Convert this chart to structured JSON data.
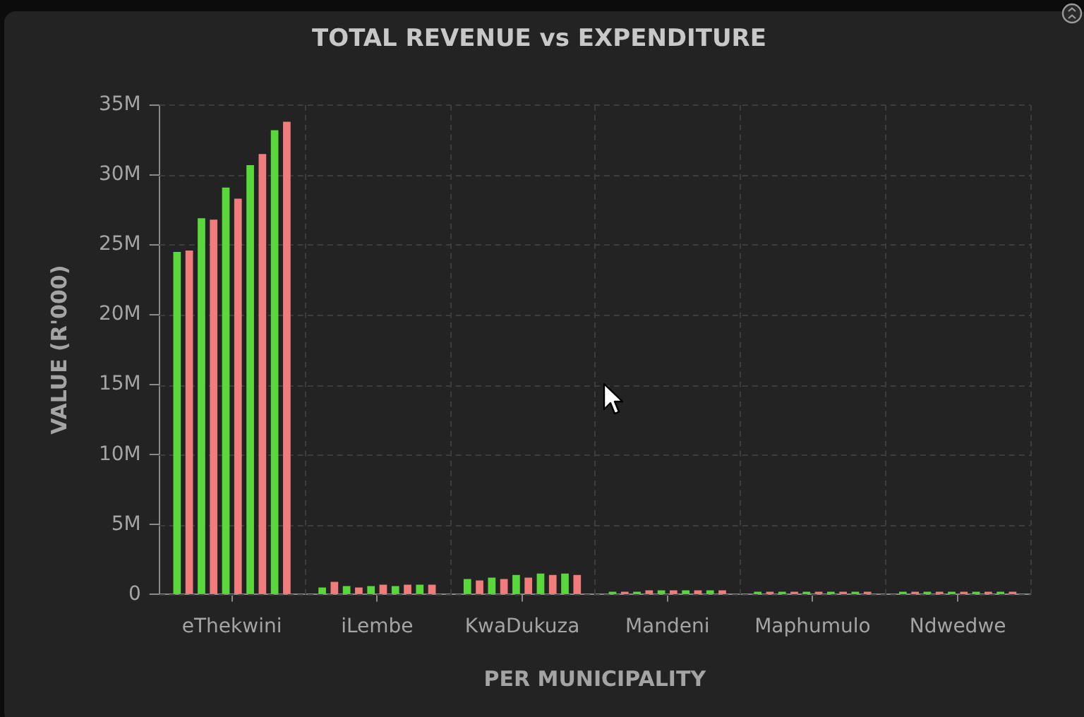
{
  "chart_data": {
    "type": "bar",
    "title": "TOTAL REVENUE vs EXPENDITURE",
    "xlabel": "PER MUNICIPALITY",
    "ylabel": "VALUE (R'000)",
    "categories": [
      "eThekwini",
      "iLembe",
      "KwaDukuza",
      "Mandeni",
      "Maphumulo",
      "Ndwedwe"
    ],
    "series": [
      {
        "color": "#58d83a",
        "values": [
          24.5,
          0.5,
          1.1,
          0.2,
          0.2,
          0.2
        ]
      },
      {
        "color": "#f07c7c",
        "values": [
          24.6,
          0.9,
          1.0,
          0.2,
          0.2,
          0.2
        ]
      },
      {
        "color": "#58d83a",
        "values": [
          26.9,
          0.6,
          1.2,
          0.2,
          0.2,
          0.2
        ]
      },
      {
        "color": "#f07c7c",
        "values": [
          26.8,
          0.5,
          1.1,
          0.3,
          0.2,
          0.2
        ]
      },
      {
        "color": "#58d83a",
        "values": [
          29.1,
          0.6,
          1.4,
          0.3,
          0.2,
          0.2
        ]
      },
      {
        "color": "#f07c7c",
        "values": [
          28.3,
          0.7,
          1.2,
          0.3,
          0.2,
          0.2
        ]
      },
      {
        "color": "#58d83a",
        "values": [
          30.7,
          0.6,
          1.5,
          0.3,
          0.2,
          0.2
        ]
      },
      {
        "color": "#f07c7c",
        "values": [
          31.5,
          0.7,
          1.4,
          0.3,
          0.2,
          0.2
        ]
      },
      {
        "color": "#58d83a",
        "values": [
          33.2,
          0.7,
          1.5,
          0.3,
          0.2,
          0.2
        ]
      },
      {
        "color": "#f07c7c",
        "values": [
          33.8,
          0.7,
          1.4,
          0.3,
          0.2,
          0.2
        ]
      }
    ],
    "ylim": [
      0,
      35
    ],
    "yticks": [
      0,
      {
        "value": 5,
        "label": "5M"
      },
      {
        "value": 10,
        "label": "10M"
      },
      {
        "value": 15,
        "label": "15M"
      },
      {
        "value": 20,
        "label": "20M"
      },
      {
        "value": 25,
        "label": "25M"
      },
      {
        "value": 30,
        "label": "30M"
      },
      {
        "value": 35,
        "label": "35M"
      }
    ],
    "grid": true
  }
}
